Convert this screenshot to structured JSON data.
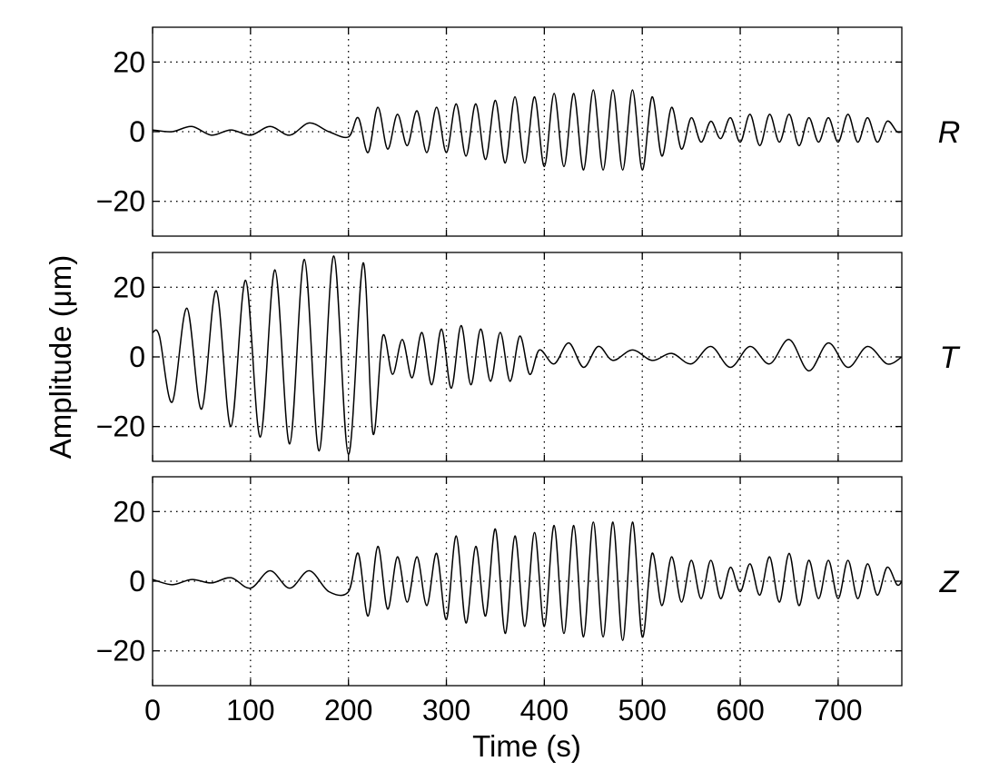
{
  "chart_data": [
    {
      "type": "line",
      "component_label": "R",
      "xlim": [
        0,
        765
      ],
      "ylim": [
        -30,
        30
      ],
      "xticks": [
        0,
        100,
        200,
        300,
        400,
        500,
        600,
        700
      ],
      "yticks": [
        -20,
        0,
        20
      ],
      "ytick_labels": [
        "−20",
        "0",
        "20"
      ],
      "grid": true,
      "series": [
        {
          "x": [
            0,
            20,
            40,
            60,
            80,
            100,
            120,
            140,
            160,
            180,
            200,
            210,
            220,
            230,
            240,
            250,
            260,
            270,
            280,
            290,
            300,
            310,
            320,
            330,
            340,
            350,
            360,
            370,
            380,
            390,
            400,
            410,
            420,
            430,
            440,
            450,
            460,
            470,
            480,
            490,
            500,
            510,
            520,
            530,
            540,
            550,
            560,
            570,
            580,
            590,
            600,
            610,
            620,
            630,
            640,
            650,
            660,
            670,
            680,
            690,
            700,
            710,
            720,
            730,
            740,
            750,
            760,
            765
          ],
          "y": [
            0.5,
            0,
            1.5,
            -1,
            0.5,
            -1,
            1.5,
            -1,
            2.5,
            0,
            -1.5,
            4,
            -6,
            7,
            -5,
            5,
            -4,
            6,
            -6,
            7,
            -6,
            8,
            -7,
            8,
            -8,
            9,
            -9,
            10,
            -9,
            10,
            -10,
            11,
            -10,
            11,
            -11,
            12,
            -11,
            12,
            -11,
            12,
            -11,
            10,
            -7,
            7,
            -5,
            4,
            -3,
            3,
            -2,
            4,
            -3,
            5,
            -4,
            5,
            -3,
            5,
            -4,
            4,
            -3,
            4,
            -3,
            5,
            -3,
            4,
            -3,
            3,
            0,
            0
          ]
        }
      ]
    },
    {
      "type": "line",
      "component_label": "T",
      "xlim": [
        0,
        765
      ],
      "ylim": [
        -30,
        30
      ],
      "xticks": [
        0,
        100,
        200,
        300,
        400,
        500,
        600,
        700
      ],
      "yticks": [
        -20,
        0,
        20
      ],
      "ytick_labels": [
        "−20",
        "0",
        "20"
      ],
      "grid": true,
      "series": [
        {
          "x": [
            0,
            7,
            20,
            35,
            50,
            65,
            80,
            95,
            110,
            125,
            140,
            155,
            170,
            185,
            200,
            215,
            225,
            235,
            245,
            255,
            265,
            275,
            285,
            295,
            305,
            315,
            325,
            335,
            345,
            355,
            365,
            375,
            385,
            395,
            410,
            425,
            440,
            455,
            470,
            490,
            510,
            530,
            550,
            570,
            590,
            610,
            630,
            650,
            670,
            690,
            710,
            730,
            750,
            765
          ],
          "y": [
            7,
            6,
            -13,
            14,
            -15,
            19,
            -20,
            22,
            -23,
            25,
            -25,
            28,
            -27,
            29,
            -28,
            27,
            -22,
            6,
            -5,
            5,
            -6,
            7,
            -8,
            8,
            -9,
            9,
            -8,
            8,
            -7,
            7,
            -7,
            6,
            -5,
            2,
            -2,
            4,
            -3,
            3,
            -1,
            2,
            -1,
            1,
            -2,
            3,
            -3,
            3,
            -2,
            5,
            -4,
            4,
            -3,
            3,
            -2,
            0
          ]
        }
      ]
    },
    {
      "type": "line",
      "component_label": "Z",
      "xlim": [
        0,
        765
      ],
      "ylim": [
        -30,
        30
      ],
      "xticks": [
        0,
        100,
        200,
        300,
        400,
        500,
        600,
        700
      ],
      "yticks": [
        -20,
        0,
        20
      ],
      "ytick_labels": [
        "−20",
        "0",
        "20"
      ],
      "grid": true,
      "series": [
        {
          "x": [
            0,
            20,
            40,
            60,
            80,
            100,
            120,
            140,
            160,
            180,
            200,
            210,
            220,
            230,
            240,
            250,
            260,
            270,
            280,
            290,
            300,
            310,
            320,
            330,
            340,
            350,
            360,
            370,
            380,
            390,
            400,
            410,
            420,
            430,
            440,
            450,
            460,
            470,
            480,
            490,
            500,
            510,
            520,
            530,
            540,
            550,
            560,
            570,
            580,
            590,
            600,
            610,
            620,
            630,
            640,
            650,
            660,
            670,
            680,
            690,
            700,
            710,
            720,
            730,
            740,
            750,
            760,
            765
          ],
          "y": [
            0.5,
            -1,
            0.5,
            -0.5,
            1,
            -2,
            3,
            -2,
            3,
            -3,
            -3,
            8,
            -10,
            10,
            -8,
            7,
            -6,
            7,
            -7,
            8,
            -11,
            13,
            -12,
            10,
            -10,
            15,
            -15,
            13,
            -13,
            14,
            -13,
            16,
            -15,
            16,
            -16,
            17,
            -16,
            17,
            -17,
            17,
            -16,
            8,
            -7,
            7,
            -6,
            6,
            -5,
            6,
            -5,
            4,
            -3,
            5,
            -4,
            7,
            -6,
            8,
            -7,
            6,
            -5,
            6,
            -5,
            6,
            -5,
            5,
            -4,
            4,
            -1,
            0
          ]
        }
      ]
    }
  ],
  "axes": {
    "xlabel": "Time (s)",
    "ylabel": "Amplitude (μm)"
  }
}
